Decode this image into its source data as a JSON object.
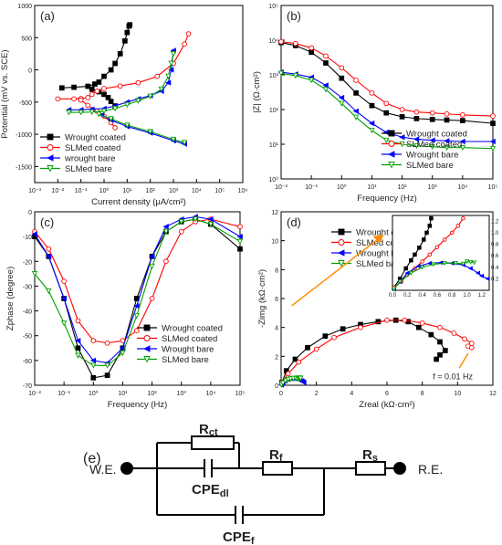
{
  "colors": {
    "wrought_coated": "#000000",
    "slm_coated": "#ff0000",
    "wrought_bare": "#0000ff",
    "slm_bare": "#00a000",
    "arrow": "#ff8c00"
  },
  "chart_data": [
    {
      "id": "a",
      "panel_label": "(a)",
      "type": "line",
      "x_scale": "log",
      "xlabel": "Current density (μA/cm²)",
      "ylabel": "Potential (mV vs. SCE)",
      "xlim": [
        0.001,
        1000000
      ],
      "ylim": [
        -1750,
        1000
      ],
      "x_ticks": [
        0.001,
        0.01,
        0.1,
        1,
        10,
        100,
        1000,
        10000,
        100000,
        1000000
      ],
      "x_tick_labels": [
        "10⁻³",
        "10⁻²",
        "10⁻¹",
        "10⁰",
        "10¹",
        "10²",
        "10³",
        "10⁴",
        "10⁵",
        "10⁶"
      ],
      "y_ticks": [
        -1500,
        -1000,
        -500,
        0,
        500,
        1000
      ],
      "y_tick_labels": [
        "-1500",
        "-1000",
        "-500",
        "0",
        "500",
        "1000"
      ],
      "legend_position": "bottom-left",
      "series": [
        {
          "name": "Wrought coated",
          "color_key": "wrought_coated",
          "marker": "square",
          "x": [
            0.015,
            0.05,
            0.2,
            0.4,
            0.6,
            1.0,
            2.0,
            3.0,
            5.0,
            8.0,
            10.0,
            12.0,
            13.0
          ],
          "y": [
            -280,
            -270,
            -255,
            -220,
            -190,
            -100,
            0,
            100,
            250,
            450,
            580,
            680,
            700
          ]
        },
        {
          "name": "Wrought coated",
          "color_key": "wrought_coated",
          "marker": "square",
          "x": [
            0.3,
            0.6,
            1.0,
            1.5,
            2.0,
            3.0
          ],
          "y": [
            -300,
            -340,
            -380,
            -430,
            -490,
            -560
          ]
        },
        {
          "name": "SLMed coated",
          "color_key": "slm_coated",
          "marker": "open-circle",
          "x": [
            0.01,
            0.05,
            0.1,
            0.2,
            0.3,
            0.5,
            1.0,
            5.0,
            30,
            200,
            1000,
            3000,
            4500
          ],
          "y": [
            -450,
            -450,
            -445,
            -430,
            -380,
            -330,
            -290,
            -250,
            -200,
            -100,
            100,
            400,
            560
          ]
        },
        {
          "name": "SLMed coated",
          "color_key": "slm_coated",
          "marker": "open-circle",
          "x": [
            0.1,
            0.2,
            0.5,
            1.0,
            2.0,
            3.0
          ],
          "y": [
            -470,
            -550,
            -640,
            -720,
            -820,
            -900
          ]
        },
        {
          "name": "wrought bare",
          "color_key": "wrought_bare",
          "marker": "left-triangle",
          "x": [
            0.03,
            0.1,
            0.3,
            1.0,
            3.0,
            10,
            30,
            100,
            300,
            600,
            800,
            1000
          ],
          "y": [
            -620,
            -620,
            -610,
            -600,
            -560,
            -500,
            -450,
            -400,
            -330,
            -200,
            0,
            300
          ]
        },
        {
          "name": "wrought bare",
          "color_key": "wrought_bare",
          "marker": "left-triangle",
          "x": [
            0.8,
            2.0,
            10,
            100,
            1000,
            3000
          ],
          "y": [
            -700,
            -780,
            -880,
            -980,
            -1100,
            -1150
          ]
        },
        {
          "name": "SLMed bare",
          "color_key": "slm_bare",
          "marker": "open-down-triangle",
          "x": [
            0.03,
            0.1,
            0.3,
            1.0,
            3.0,
            10,
            30,
            100,
            300,
            600,
            800,
            1000
          ],
          "y": [
            -660,
            -660,
            -655,
            -640,
            -600,
            -540,
            -480,
            -410,
            -300,
            -100,
            100,
            250
          ]
        },
        {
          "name": "SLMed bare",
          "color_key": "slm_bare",
          "marker": "open-down-triangle",
          "x": [
            0.6,
            2.0,
            10,
            100,
            1000,
            3000
          ],
          "y": [
            -690,
            -760,
            -860,
            -960,
            -1080,
            -1130
          ]
        }
      ]
    },
    {
      "id": "b",
      "panel_label": "(b)",
      "type": "line",
      "x_scale": "log",
      "y_scale": "log",
      "xlabel": "Frequency (Hz)",
      "ylabel": "|Z| (Ω·cm²)",
      "xlim": [
        0.01,
        100000
      ],
      "ylim": [
        1,
        100000
      ],
      "x_ticks": [
        0.01,
        0.1,
        1,
        10,
        100,
        1000,
        10000,
        100000
      ],
      "x_tick_labels": [
        "10⁻²",
        "10⁻¹",
        "10⁰",
        "10¹",
        "10²",
        "10³",
        "10⁴",
        "10⁵"
      ],
      "y_ticks": [
        1,
        10,
        100,
        1000,
        10000,
        100000
      ],
      "y_tick_labels": [
        "10⁰",
        "10¹",
        "10²",
        "10³",
        "10⁴",
        "10⁵"
      ],
      "legend_position": "bottom-right",
      "series": [
        {
          "name": "Wrought coated",
          "color_key": "wrought_coated",
          "marker": "square",
          "x": [
            0.01,
            0.03,
            0.1,
            0.3,
            1,
            3,
            10,
            30,
            100,
            300,
            1000,
            3000,
            10000,
            100000
          ],
          "y": [
            8500,
            7000,
            4500,
            2200,
            800,
            300,
            130,
            80,
            62,
            55,
            52,
            50,
            48,
            40
          ]
        },
        {
          "name": "SLMed coated",
          "color_key": "slm_coated",
          "marker": "open-circle",
          "x": [
            0.01,
            0.03,
            0.1,
            0.3,
            1,
            3,
            10,
            30,
            100,
            300,
            1000,
            3000,
            10000,
            100000
          ],
          "y": [
            9000,
            8000,
            6000,
            3500,
            1600,
            700,
            300,
            150,
            100,
            85,
            80,
            75,
            70,
            65
          ]
        },
        {
          "name": "Wrought bare",
          "color_key": "wrought_bare",
          "marker": "left-triangle",
          "x": [
            0.01,
            0.03,
            0.1,
            0.3,
            1,
            3,
            10,
            30,
            100,
            300,
            1000,
            3000,
            10000,
            100000
          ],
          "y": [
            1200,
            1050,
            850,
            500,
            220,
            90,
            40,
            22,
            16,
            14,
            13,
            12.5,
            12,
            12
          ]
        },
        {
          "name": "SLMed bare",
          "color_key": "slm_bare",
          "marker": "open-down-triangle",
          "x": [
            0.01,
            0.03,
            0.1,
            0.3,
            1,
            3,
            10,
            30,
            100,
            300,
            1000,
            3000,
            10000,
            100000
          ],
          "y": [
            1100,
            950,
            700,
            380,
            150,
            60,
            25,
            13,
            10,
            9,
            8.5,
            8,
            8,
            7.5
          ]
        }
      ]
    },
    {
      "id": "c",
      "panel_label": "(c)",
      "type": "line",
      "x_scale": "log",
      "xlabel": "Frequency (Hz)",
      "ylabel": "Zphase (degree)",
      "xlim": [
        0.01,
        100000
      ],
      "ylim": [
        -70,
        0
      ],
      "x_ticks": [
        0.01,
        0.1,
        1,
        10,
        100,
        1000,
        10000,
        100000
      ],
      "x_tick_labels": [
        "10⁻²",
        "10⁻¹",
        "10⁰",
        "10¹",
        "10²",
        "10³",
        "10⁴",
        "10⁵"
      ],
      "y_ticks": [
        -70,
        -60,
        -50,
        -40,
        -30,
        -20,
        -10,
        0
      ],
      "y_tick_labels": [
        "-70",
        "-60",
        "-50",
        "-40",
        "-30",
        "-20",
        "-10",
        "0"
      ],
      "legend_position": "bottom-right",
      "series": [
        {
          "name": "Wrought coated",
          "color_key": "wrought_coated",
          "marker": "square",
          "x": [
            0.01,
            0.03,
            0.1,
            0.3,
            1,
            3,
            10,
            30,
            100,
            300,
            1000,
            3000,
            10000,
            100000
          ],
          "y": [
            -10,
            -18,
            -35,
            -55,
            -67,
            -66,
            -55,
            -35,
            -18,
            -8,
            -4,
            -3,
            -5,
            -15
          ]
        },
        {
          "name": "SLMed coated",
          "color_key": "slm_coated",
          "marker": "open-circle",
          "x": [
            0.01,
            0.03,
            0.1,
            0.3,
            1,
            3,
            10,
            30,
            100,
            300,
            1000,
            3000,
            10000,
            100000
          ],
          "y": [
            -8,
            -15,
            -28,
            -44,
            -52,
            -53,
            -52,
            -48,
            -35,
            -20,
            -8,
            -4,
            -3,
            -6
          ]
        },
        {
          "name": "Wrought bare",
          "color_key": "wrought_bare",
          "marker": "left-triangle",
          "x": [
            0.01,
            0.03,
            0.1,
            0.3,
            1,
            3,
            10,
            30,
            100,
            300,
            1000,
            3000,
            10000,
            100000
          ],
          "y": [
            -9,
            -18,
            -35,
            -52,
            -60,
            -61,
            -55,
            -38,
            -18,
            -6,
            -3,
            -2,
            -3,
            -10
          ]
        },
        {
          "name": "SLMed bare",
          "color_key": "slm_bare",
          "marker": "open-down-triangle",
          "x": [
            0.01,
            0.03,
            0.1,
            0.3,
            1,
            3,
            10,
            30,
            100,
            300,
            1000,
            3000,
            10000,
            100000
          ],
          "y": [
            -25,
            -32,
            -45,
            -58,
            -62,
            -62,
            -57,
            -42,
            -22,
            -8,
            -4,
            -3,
            -5,
            -12
          ]
        }
      ]
    },
    {
      "id": "d",
      "panel_label": "(d)",
      "type": "scatter",
      "xlabel": "Zreal (kΩ·cm²)",
      "ylabel": "-Zimg (kΩ·cm²)",
      "xlim": [
        0,
        12
      ],
      "ylim": [
        0,
        12
      ],
      "x_ticks": [
        0,
        2,
        4,
        6,
        8,
        10,
        12
      ],
      "y_ticks": [
        0,
        2,
        4,
        6,
        8,
        10,
        12
      ],
      "x_tick_labels": [
        "0",
        "2",
        "4",
        "6",
        "8",
        "10",
        "12"
      ],
      "y_tick_labels": [
        "0",
        "2",
        "4",
        "6",
        "8",
        "10",
        "12"
      ],
      "annotation": "f = 0.01 Hz",
      "legend_position": "top",
      "series": [
        {
          "name": "Wrought coated",
          "color_key": "wrought_coated",
          "marker": "square",
          "x": [
            0.05,
            0.3,
            0.8,
            1.5,
            2.5,
            3.5,
            4.5,
            5.5,
            6.5,
            7.2,
            7.8,
            8.5,
            9.0,
            9.3,
            8.8,
            9.0
          ],
          "y": [
            0.2,
            1.0,
            1.8,
            2.6,
            3.4,
            3.9,
            4.2,
            4.4,
            4.5,
            4.4,
            4.0,
            3.5,
            3.0,
            2.4,
            1.8,
            2.1
          ]
        },
        {
          "name": "SLMed coated",
          "color_key": "slm_coated",
          "marker": "open-circle",
          "x": [
            0.05,
            0.4,
            1.0,
            2.0,
            3.0,
            4.5,
            6.0,
            7.0,
            8.0,
            9.0,
            9.8,
            10.4,
            10.8,
            10.6,
            10.8
          ],
          "y": [
            0.2,
            0.8,
            1.6,
            2.5,
            3.3,
            4.0,
            4.5,
            4.5,
            4.3,
            4.0,
            3.6,
            3.2,
            2.9,
            2.7,
            2.6
          ]
        },
        {
          "name": "Wrought bare",
          "color_key": "wrought_bare",
          "marker": "left-triangle",
          "x": [
            0.02,
            0.1,
            0.2,
            0.35,
            0.5,
            0.65,
            0.8,
            0.95,
            1.05,
            1.15,
            1.2,
            1.28
          ],
          "y": [
            0.02,
            0.15,
            0.3,
            0.42,
            0.47,
            0.48,
            0.47,
            0.44,
            0.38,
            0.3,
            0.25,
            0.2
          ]
        },
        {
          "name": "SLMed bare",
          "color_key": "slm_bare",
          "marker": "open-down-triangle",
          "x": [
            0.02,
            0.1,
            0.25,
            0.4,
            0.55,
            0.7,
            0.85,
            0.95,
            1.0,
            1.05,
            1.1
          ],
          "y": [
            0.02,
            0.15,
            0.3,
            0.4,
            0.45,
            0.47,
            0.47,
            0.46,
            0.5,
            0.49,
            0.48
          ]
        }
      ],
      "inset": {
        "xlim": [
          0,
          1.3
        ],
        "ylim": [
          0,
          1.3
        ],
        "x_ticks": [
          0,
          0.2,
          0.4,
          0.6,
          0.8,
          1.0,
          1.2
        ],
        "x_tick_labels": [
          "0.0",
          "0.2",
          "0.4",
          "0.6",
          "0.8",
          "1.0",
          "1.2"
        ],
        "y_ticks": [
          0.2,
          0.4,
          0.6,
          0.8,
          1.0,
          1.2
        ],
        "y_tick_labels": [
          "0.2",
          "0.4",
          "0.6",
          "0.8",
          "1.0",
          "1.2"
        ],
        "series": [
          {
            "name": "Wrought coated",
            "color_key": "wrought_coated",
            "marker": "square",
            "x": [
              0.02,
              0.1,
              0.18,
              0.25,
              0.3,
              0.36,
              0.42,
              0.46,
              0.5,
              0.52
            ],
            "y": [
              0.05,
              0.2,
              0.38,
              0.52,
              0.62,
              0.74,
              0.88,
              1.0,
              1.12,
              1.25
            ]
          },
          {
            "name": "SLMed coated",
            "color_key": "slm_coated",
            "marker": "open-circle",
            "x": [
              0.02,
              0.12,
              0.2,
              0.3,
              0.4,
              0.5,
              0.6,
              0.7,
              0.8,
              0.88,
              0.95
            ],
            "y": [
              0.05,
              0.15,
              0.27,
              0.38,
              0.5,
              0.62,
              0.75,
              0.88,
              1.0,
              1.12,
              1.25
            ]
          },
          {
            "name": "Wrought bare",
            "color_key": "wrought_bare",
            "marker": "left-triangle",
            "x": [
              0.02,
              0.1,
              0.2,
              0.35,
              0.5,
              0.65,
              0.8,
              0.95,
              1.05,
              1.15,
              1.2,
              1.28
            ],
            "y": [
              0.02,
              0.15,
              0.3,
              0.42,
              0.47,
              0.48,
              0.47,
              0.44,
              0.38,
              0.3,
              0.25,
              0.2
            ]
          },
          {
            "name": "SLMed bare",
            "color_key": "slm_bare",
            "marker": "open-down-triangle",
            "x": [
              0.02,
              0.1,
              0.25,
              0.4,
              0.55,
              0.7,
              0.85,
              0.95,
              1.0,
              1.05,
              1.1
            ],
            "y": [
              0.02,
              0.15,
              0.3,
              0.4,
              0.45,
              0.47,
              0.47,
              0.46,
              0.5,
              0.49,
              0.48
            ]
          }
        ]
      }
    }
  ],
  "circuit": {
    "panel_label": "(e)",
    "we_label": "W.E.",
    "re_label": "R.E.",
    "rct_label": "R",
    "rct_sub": "ct",
    "cpedl_label": "CPE",
    "cpedl_sub": "dl",
    "rf_label": "R",
    "rf_sub": "f",
    "rs_label": "R",
    "rs_sub": "s",
    "cpef_label": "CPE",
    "cpef_sub": "f"
  }
}
